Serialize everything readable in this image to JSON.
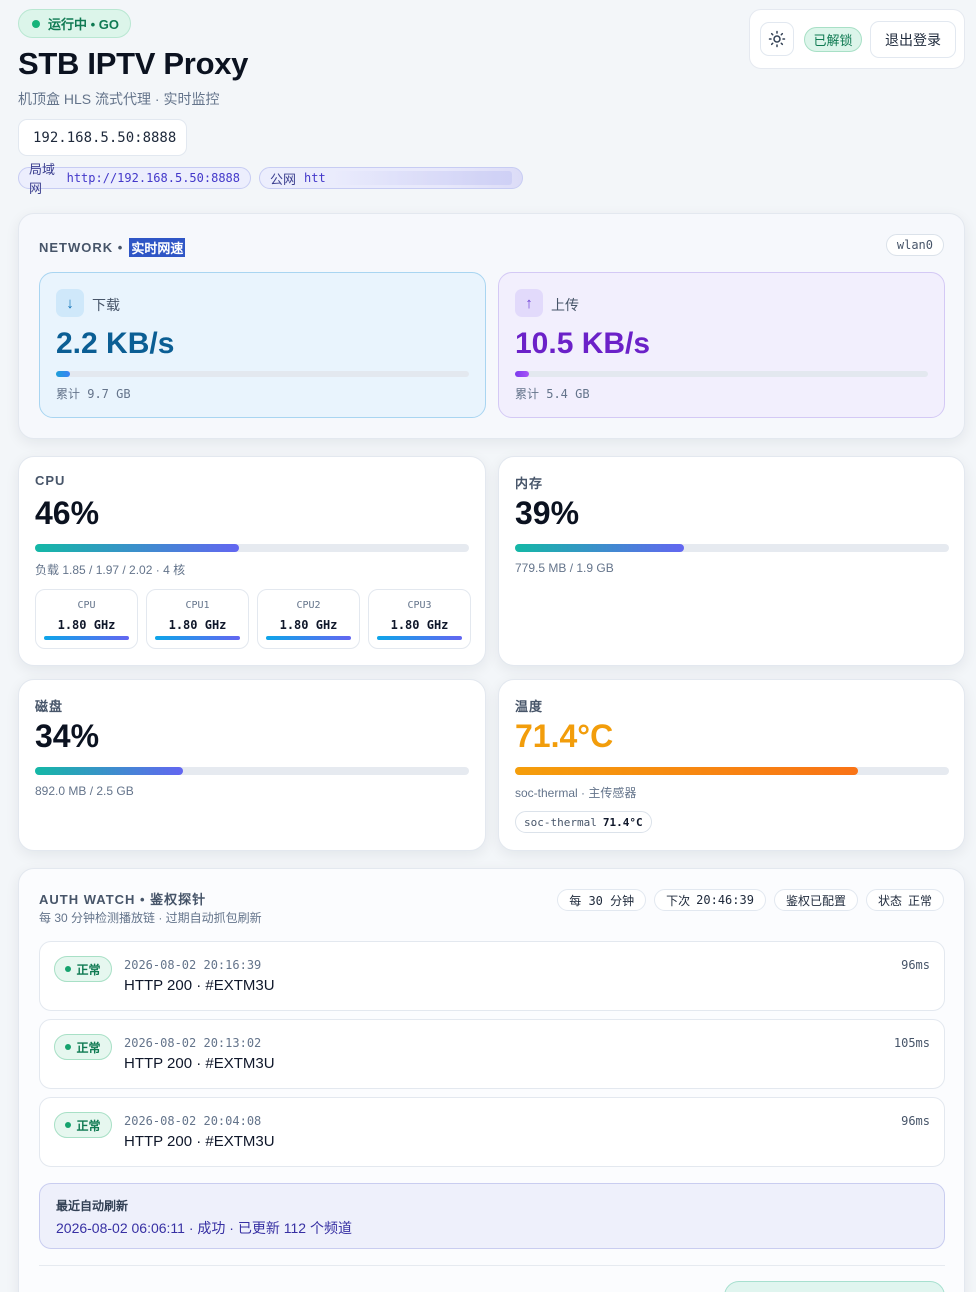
{
  "header": {
    "status": "运行中 • GO",
    "title": "STB IPTV Proxy",
    "subtitle": "机顶盒 HLS 流式代理 · 实时监控",
    "address": "192.168.5.50:8888",
    "lan": {
      "label": "局域网",
      "url": "http://192.168.5.50:8888"
    },
    "wan": {
      "label": "公网",
      "url": "htt"
    }
  },
  "actions": {
    "theme_icon": "sun-icon",
    "lock_badge": "已解锁",
    "logout": "退出登录"
  },
  "network": {
    "label": "NETWORK • ",
    "label_highlight": "实时网速",
    "interface": "wlan0",
    "download": {
      "icon": "↓",
      "label": "下载",
      "value": "2.2 KB/s",
      "total": "累计 9.7 GB",
      "level": 0.035,
      "color": "#0b5e94"
    },
    "upload": {
      "icon": "↑",
      "label": "上传",
      "value": "10.5 KB/s",
      "total": "累计 5.4 GB",
      "level": 0.035,
      "color": "#6b21c8"
    }
  },
  "cpu": {
    "title": "CPU",
    "value": "46%",
    "level": 0.47,
    "sub": "负载 1.85 / 1.97 / 2.02 · 4 核",
    "cores": [
      {
        "name": "CPU",
        "freq": "1.80 GHz"
      },
      {
        "name": "CPU1",
        "freq": "1.80 GHz"
      },
      {
        "name": "CPU2",
        "freq": "1.80 GHz"
      },
      {
        "name": "CPU3",
        "freq": "1.80 GHz"
      }
    ]
  },
  "memory": {
    "title": "内存",
    "value": "39%",
    "level": 0.39,
    "sub": "779.5 MB / 1.9 GB"
  },
  "disk": {
    "title": "磁盘",
    "value": "34%",
    "level": 0.34,
    "sub": "892.0 MB / 2.5 GB"
  },
  "temperature": {
    "title": "温度",
    "value": "71.4°C",
    "level": 0.79,
    "sub": "soc-thermal · 主传感器",
    "sensor_name": "soc-thermal",
    "sensor_value": "71.4°C",
    "color": "#f29d0b"
  },
  "auth": {
    "title": "AUTH WATCH • 鉴权探针",
    "desc": "每 30 分钟检测播放链 · 过期自动抓包刷新",
    "chips": {
      "interval": "每 30 分钟",
      "next_label": "下次",
      "next_time": "20:46:39",
      "configured": "鉴权已配置",
      "state_label": "状态",
      "state_value": "正常"
    },
    "probes": [
      {
        "status": "正常",
        "time": "2026-08-02 20:16:39",
        "msg": "HTTP 200 · #EXTM3U",
        "latency": "96ms"
      },
      {
        "status": "正常",
        "time": "2026-08-02 20:13:02",
        "msg": "HTTP 200 · #EXTM3U",
        "latency": "105ms"
      },
      {
        "status": "正常",
        "time": "2026-08-02 20:04:08",
        "msg": "HTTP 200 · #EXTM3U",
        "latency": "96ms"
      }
    ],
    "refresh_label": "最近自动刷新",
    "refresh_value": "2026-08-02 06:06:11 · 成功 · 已更新 112 个频道"
  }
}
